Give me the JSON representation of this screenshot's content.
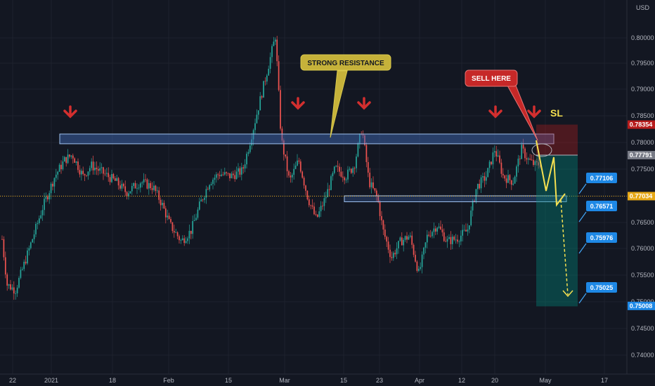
{
  "chart_data": {
    "type": "candlestick",
    "currency": "USD",
    "y_ticks": [
      "0.80000",
      "0.79500",
      "0.79000",
      "0.78500",
      "0.78000",
      "0.77500",
      "0.77000",
      "0.76500",
      "0.76000",
      "0.75500",
      "0.75000",
      "0.74500",
      "0.74000"
    ],
    "ylim": [
      0.7375,
      0.8055
    ],
    "x_ticks": [
      "22",
      "2021",
      "18",
      "Feb",
      "15",
      "Mar",
      "15",
      "23",
      "Apr",
      "12",
      "20",
      "May",
      "17"
    ],
    "price_tags": [
      {
        "label": "0.78354",
        "value": 0.78354,
        "color": "#b71c1c"
      },
      {
        "label": "0.77791",
        "value": 0.77791,
        "color": "#787b86"
      },
      {
        "label": "0.77034",
        "value": 0.77034,
        "color": "#e6a817"
      },
      {
        "label": "0.75008",
        "value": 0.75008,
        "color": "#1e88e5"
      }
    ],
    "target_labels": [
      {
        "label": "0.77106",
        "value": 0.77106
      },
      {
        "label": "0.76571",
        "value": 0.76571
      },
      {
        "label": "0.75976",
        "value": 0.75976
      },
      {
        "label": "0.75025",
        "value": 0.75025
      }
    ],
    "annotations": {
      "strong_resistance": "STRONG RESISTANCE",
      "sell_here": "SELL HERE",
      "sl": "SL"
    },
    "resistance_zone": [
      0.78,
      0.7818
    ],
    "support_zone": [
      0.7693,
      0.7704
    ],
    "stop_zone": [
      0.7779,
      0.78354
    ],
    "target_zone": [
      0.75,
      0.7779
    ],
    "colors": {
      "up": "#26a69a",
      "down": "#ef5350",
      "background": "#131722",
      "arrow": "#d32f2f",
      "projection": "#f5e050"
    }
  }
}
